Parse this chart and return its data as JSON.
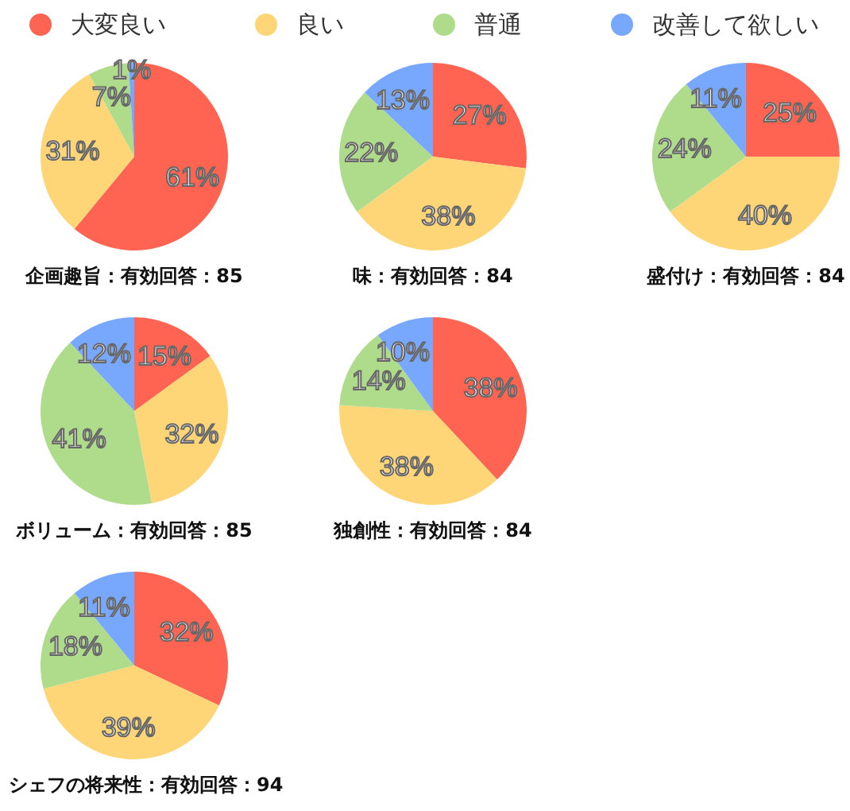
{
  "chart_data": [
    {
      "type": "pie",
      "title": "企画趣旨：有効回答：85",
      "categories": [
        "大変良い",
        "良い",
        "普通",
        "改善して欲しい"
      ],
      "values": [
        61,
        31,
        7,
        1
      ],
      "colors": [
        "#ff6352",
        "#ffd677",
        "#afdc8b",
        "#78a8fe"
      ],
      "value_labels": [
        "61%",
        "31%",
        "7%",
        "1%"
      ],
      "legend": "top"
    },
    {
      "type": "pie",
      "title": "味：有効回答：84",
      "categories": [
        null,
        null,
        null,
        null
      ],
      "values": [
        27,
        38,
        22,
        13
      ],
      "colors": [
        "#ff6352",
        "#ffd677",
        "#afdc8b",
        "#78a8fe"
      ],
      "value_labels": [
        "27%",
        "38%",
        "22%",
        "13%"
      ]
    },
    {
      "type": "pie",
      "title": "盛付け：有効回答：84",
      "categories": [
        null,
        null,
        null,
        null
      ],
      "values": [
        25,
        40,
        24,
        11
      ],
      "colors": [
        "#ff6352",
        "#ffd677",
        "#afdc8b",
        "#78a8fe"
      ],
      "value_labels": [
        "25%",
        "40%",
        "24%",
        "11%"
      ]
    },
    {
      "type": "pie",
      "title": "ボリューム：有効回答：85",
      "categories": [
        null,
        null,
        null,
        null
      ],
      "values": [
        15,
        32,
        41,
        12
      ],
      "colors": [
        "#ff6352",
        "#ffd677",
        "#afdc8b",
        "#78a8fe"
      ],
      "value_labels": [
        "15%",
        "32%",
        "41%",
        "12%"
      ]
    },
    {
      "type": "pie",
      "title": "独創性：有効回答：84",
      "categories": [
        null,
        null,
        null,
        null
      ],
      "values": [
        38,
        38,
        14,
        10
      ],
      "colors": [
        "#ff6352",
        "#ffd677",
        "#afdc8b",
        "#78a8fe"
      ],
      "value_labels": [
        "38%",
        "38%",
        "14%",
        "10%"
      ]
    },
    {
      "type": "pie",
      "title": "シェフの将来性：有効回答：94",
      "categories": [
        null,
        null,
        null,
        null
      ],
      "values": [
        32,
        39,
        18,
        11
      ],
      "colors": [
        "#ff6352",
        "#ffd677",
        "#afdc8b",
        "#78a8fe"
      ],
      "value_labels": [
        "32%",
        "39%",
        "18%",
        "11%"
      ]
    }
  ]
}
